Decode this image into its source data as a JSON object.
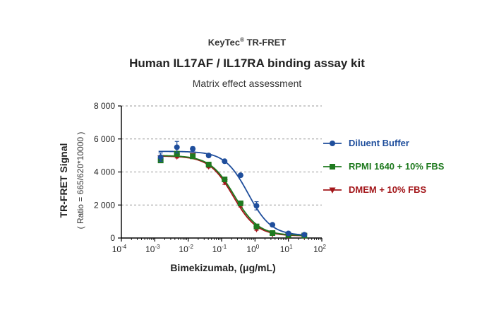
{
  "header": {
    "brand": "KeyTec",
    "brand_mark": "®",
    "brand_suffix": " TR-FRET",
    "title": "Human IL17AF / IL17RA binding assay kit",
    "subtitle": "Matrix effect assessment"
  },
  "chart_data": {
    "type": "scatter",
    "title": "Human IL17AF / IL17RA binding assay kit",
    "subtitle": "Matrix effect assessment",
    "xlabel": "Bimekizumab, (μg/mL)",
    "ylabel": "TR-FRET Signal",
    "ylabel2": "( Ratio = 665/620*10000 )",
    "x_scale": "log10",
    "xlim": [
      0.0001,
      100
    ],
    "ylim": [
      0,
      8000
    ],
    "x_ticks": [
      {
        "base": "10",
        "exp": "-4",
        "value": 0.0001
      },
      {
        "base": "10",
        "exp": "-3",
        "value": 0.001
      },
      {
        "base": "10",
        "exp": "-2",
        "value": 0.01
      },
      {
        "base": "10",
        "exp": "-1",
        "value": 0.1
      },
      {
        "base": "10",
        "exp": "0",
        "value": 1
      },
      {
        "base": "10",
        "exp": "1",
        "value": 10
      },
      {
        "base": "10",
        "exp": "2",
        "value": 100
      }
    ],
    "y_ticks": [
      {
        "label": "0",
        "value": 0
      },
      {
        "label": "2 000",
        "value": 2000
      },
      {
        "label": "4 000",
        "value": 4000
      },
      {
        "label": "6 000",
        "value": 6000
      },
      {
        "label": "8 000",
        "value": 8000
      }
    ],
    "grid": "horizontal dashed",
    "legend_position": "right",
    "curve_fit": "4-parameter logistic",
    "series": [
      {
        "name": "Diluent Buffer",
        "color": "#1f4e9c",
        "marker": "circle",
        "x": [
          0.0015,
          0.0046,
          0.0137,
          0.041,
          0.123,
          0.37,
          1.11,
          3.33,
          10,
          30
        ],
        "y": [
          4900,
          5500,
          5400,
          5000,
          4650,
          3800,
          1950,
          800,
          280,
          200
        ],
        "err": [
          250,
          350,
          120,
          100,
          80,
          100,
          250,
          80,
          50,
          40
        ],
        "fit": {
          "bottom": 150,
          "top": 5250,
          "ec50": 0.62,
          "hill": 1.25
        }
      },
      {
        "name": "RPMI 1640 + 10% FBS",
        "color": "#1f7a1f",
        "marker": "square",
        "x": [
          0.0015,
          0.0046,
          0.0137,
          0.041,
          0.123,
          0.37,
          1.11,
          3.33,
          10,
          30
        ],
        "y": [
          4700,
          5100,
          4950,
          4450,
          3550,
          2100,
          700,
          300,
          180,
          150
        ],
        "err": [
          120,
          150,
          80,
          80,
          100,
          120,
          80,
          50,
          30,
          30
        ],
        "fit": {
          "bottom": 150,
          "top": 5000,
          "ec50": 0.24,
          "hill": 1.2
        }
      },
      {
        "name": "DMEM + 10% FBS",
        "color": "#a3161a",
        "marker": "triangle-down",
        "x": [
          0.0015,
          0.0046,
          0.0137,
          0.041,
          0.123,
          0.37,
          1.11,
          3.33,
          10,
          30
        ],
        "y": [
          4850,
          4950,
          5000,
          4350,
          3400,
          2000,
          550,
          250,
          150,
          120
        ],
        "err": [
          100,
          100,
          80,
          100,
          150,
          120,
          80,
          40,
          30,
          30
        ],
        "fit": {
          "bottom": 130,
          "top": 4970,
          "ec50": 0.22,
          "hill": 1.22
        }
      }
    ]
  }
}
